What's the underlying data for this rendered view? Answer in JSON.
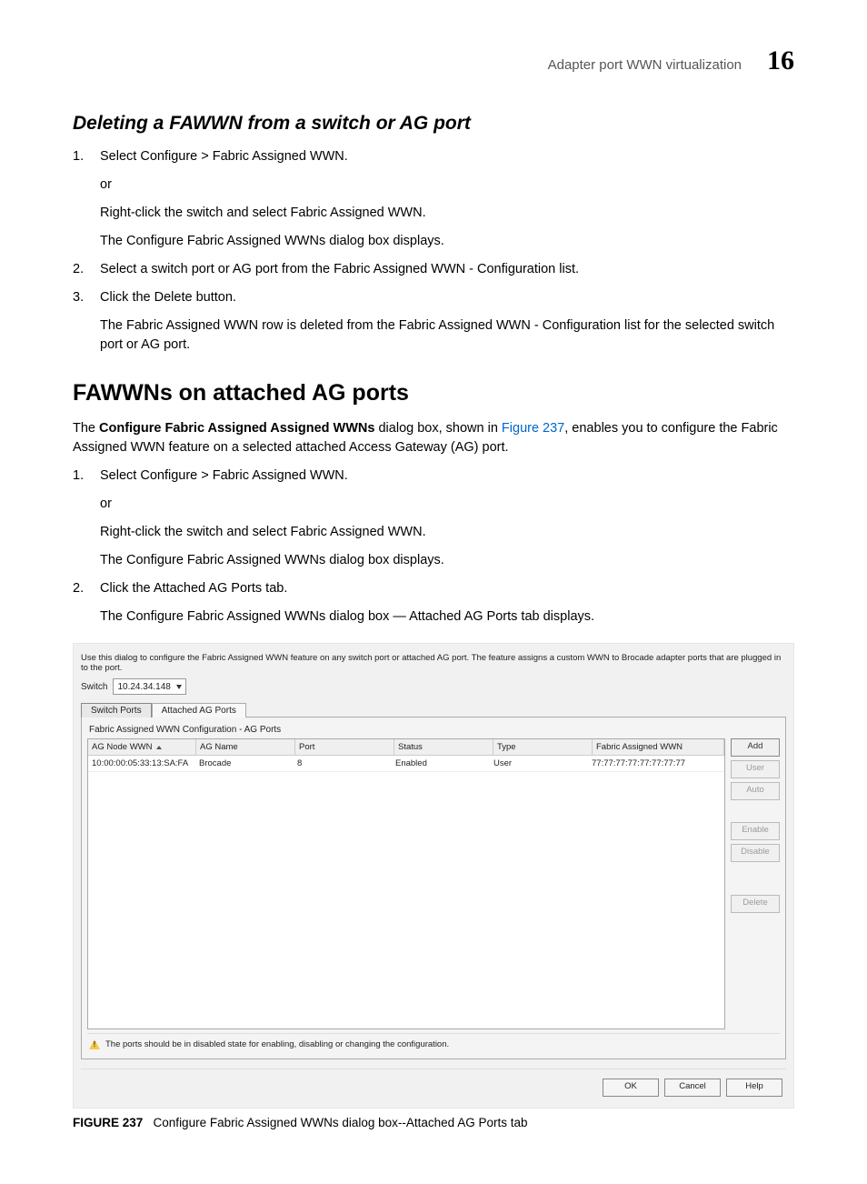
{
  "header": {
    "title": "Adapter port WWN virtualization",
    "chapter": "16"
  },
  "section1": {
    "heading": "Deleting a FAWWN from a switch or AG port",
    "steps": {
      "s1": {
        "prefix": "Select ",
        "bold": "Configure > Fabric Assigned WWN",
        "suffix": ".",
        "or": "or",
        "alt_prefix": "Right-click the switch and select ",
        "alt_bold": "Fabric Assigned WWN",
        "alt_suffix": ".",
        "result_prefix": "The ",
        "result_bold": "Configure Fabric Assigned WWNs",
        "result_suffix": " dialog box displays."
      },
      "s2": {
        "prefix": "Select a switch port or AG port from the ",
        "bold": "Fabric Assigned WWN - Configuration",
        "suffix": " list."
      },
      "s3": {
        "prefix": "Click the ",
        "bold": "Delete",
        "suffix": " button.",
        "result_prefix": "The Fabric Assigned WWN row is deleted from the ",
        "result_bold": "Fabric Assigned WWN - Configuration",
        "result_suffix": " list for the selected switch port or AG port."
      }
    }
  },
  "section2": {
    "heading": "FAWWNs on attached AG ports",
    "intro": {
      "p1a": "The ",
      "p1b": "Configure Fabric Assigned Assigned WWNs",
      "p1c": " dialog box, shown in ",
      "link": "Figure 237",
      "p1d": ", enables you to configure the Fabric Assigned WWN feature on a selected attached Access Gateway (AG) port."
    },
    "steps": {
      "s1": {
        "prefix": "Select ",
        "bold": "Configure > Fabric Assigned WWN",
        "suffix": ".",
        "or": "or",
        "alt": "Right-click the switch and select Fabric Assigned WWN.",
        "result_prefix": "The ",
        "result_bold": "Configure Fabric Assigned WWNs",
        "result_suffix": " dialog box displays."
      },
      "s2": {
        "prefix": "Click the ",
        "bold": "Attached AG Ports",
        "suffix": " tab.",
        "result_prefix": "The ",
        "result_bold1": "Configure Fabric Assigned WWNs",
        "result_mid": " dialog box — ",
        "result_bold2": "Attached AG Ports",
        "result_suffix": " tab displays."
      }
    }
  },
  "dialog": {
    "instruction": "Use this dialog to configure the Fabric Assigned WWN feature on any switch port or attached AG port. The feature assigns a custom WWN to Brocade adapter ports that are plugged in to the port.",
    "switch_label": "Switch",
    "switch_value": "10.24.34.148",
    "tabs": {
      "t1": "Switch Ports",
      "t2": "Attached AG Ports"
    },
    "panel_title": "Fabric Assigned WWN Configuration - AG Ports",
    "columns": {
      "c0": "AG Node WWN",
      "c1": "AG Name",
      "c2": "Port",
      "c3": "Status",
      "c4": "Type",
      "c5": "Fabric Assigned WWN"
    },
    "row0": {
      "c0": "10:00:00:05:33:13:SA:FA",
      "c1": "Brocade",
      "c2": "8",
      "c3": "Enabled",
      "c4": "User",
      "c5": "77:77:77:77:77:77:77:77"
    },
    "buttons": {
      "add": "Add",
      "user": "User",
      "auto": "Auto",
      "enable": "Enable",
      "disable": "Disable",
      "delete": "Delete"
    },
    "warning": "The ports should be in disabled state for enabling, disabling or changing the configuration.",
    "footer": {
      "ok": "OK",
      "cancel": "Cancel",
      "help": "Help"
    }
  },
  "figure": {
    "label": "FIGURE 237",
    "caption": "Configure Fabric Assigned WWNs dialog box--Attached AG Ports tab"
  }
}
